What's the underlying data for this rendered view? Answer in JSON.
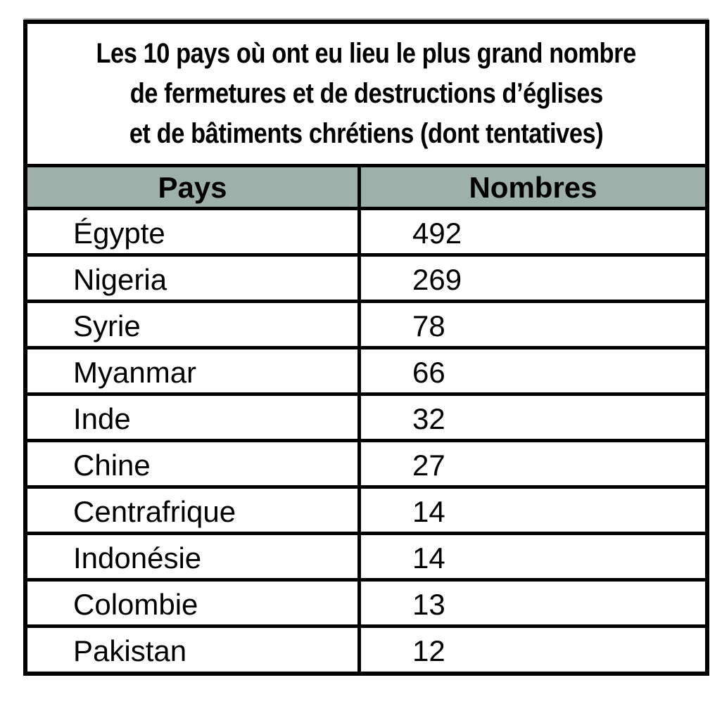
{
  "table": {
    "title_lines": [
      "Les 10 pays où ont eu lieu le plus grand nombre",
      "de fermetures et de destructions d’églises",
      "et de bâtiments chrétiens (dont tentatives)"
    ],
    "columns": [
      "Pays",
      "Nombres"
    ],
    "rows": [
      {
        "country": "Égypte",
        "count": "492"
      },
      {
        "country": "Nigeria",
        "count": "269"
      },
      {
        "country": "Syrie",
        "count": "78"
      },
      {
        "country": "Myanmar",
        "count": "66"
      },
      {
        "country": "Inde",
        "count": "32"
      },
      {
        "country": "Chine",
        "count": "27"
      },
      {
        "country": "Centrafrique",
        "count": "14"
      },
      {
        "country": "Indonésie",
        "count": "14"
      },
      {
        "country": "Colombie",
        "count": "13"
      },
      {
        "country": "Pakistan",
        "count": "12"
      }
    ],
    "colors": {
      "header_bg": "#9db1aa",
      "border": "#000000",
      "text": "#000000",
      "background": "#ffffff"
    }
  },
  "chart_data": {
    "type": "table",
    "title": "Les 10 pays où ont eu lieu le plus grand nombre de fermetures et de destructions d’églises et de bâtiments chrétiens (dont tentatives)",
    "columns": [
      "Pays",
      "Nombres"
    ],
    "categories": [
      "Égypte",
      "Nigeria",
      "Syrie",
      "Myanmar",
      "Inde",
      "Chine",
      "Centrafrique",
      "Indonésie",
      "Colombie",
      "Pakistan"
    ],
    "values": [
      492,
      269,
      78,
      66,
      32,
      27,
      14,
      14,
      13,
      12
    ]
  }
}
